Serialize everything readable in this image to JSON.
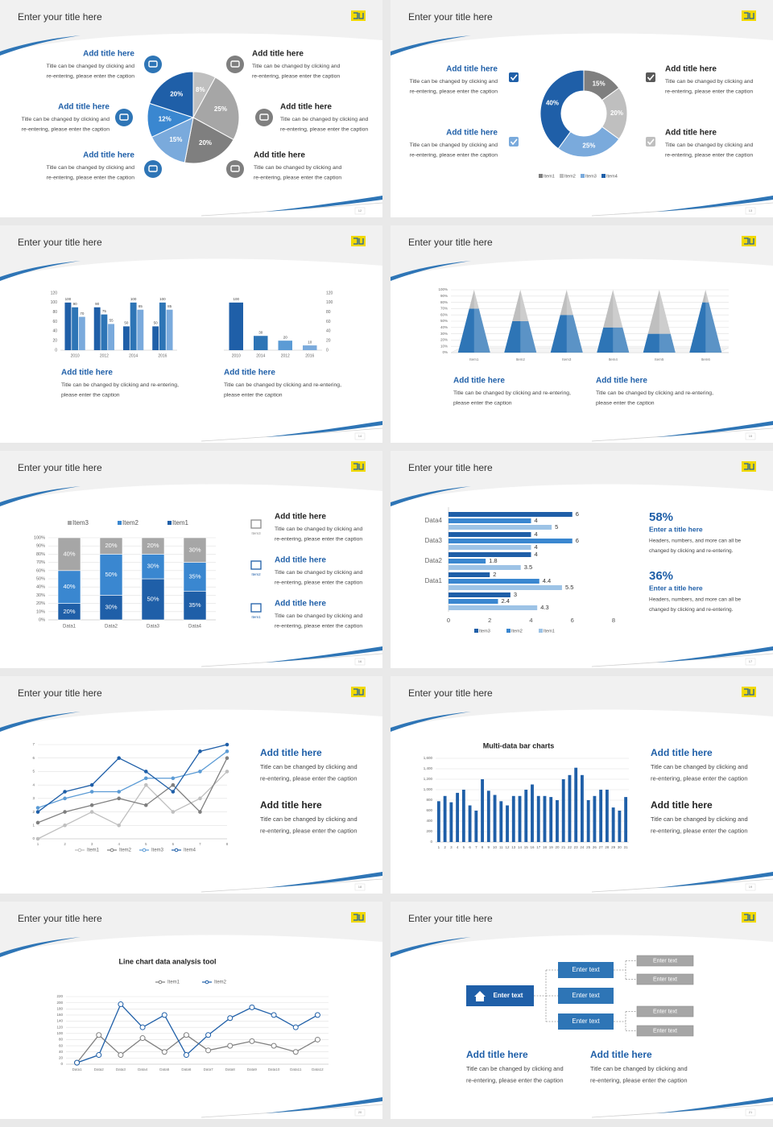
{
  "slides": [
    {
      "title": "Enter your title here",
      "page": 12,
      "chart": {
        "type": "pie",
        "values": [
          8,
          25,
          20,
          15,
          12,
          20
        ],
        "value_labels": [
          "8%",
          "25%",
          "20%",
          "15%",
          "12%",
          "20%"
        ],
        "colors": [
          "#bfbfbf",
          "#a6a6a6",
          "#7f7f7f",
          "#7aaadc",
          "#3a87d0",
          "#1f5fa8"
        ]
      },
      "blocks": [
        {
          "title": "Add title here",
          "lines": [
            "Title can be changed by clicking and",
            "re-entering, please enter the caption"
          ]
        },
        {
          "title": "Add title here",
          "lines": [
            "Title can be changed by clicking and",
            "re-entering, please enter the caption"
          ]
        },
        {
          "title": "Add title here",
          "lines": [
            "Title can be changed by clicking and",
            "re-entering, please enter the caption"
          ]
        },
        {
          "title": "Add title here",
          "lines": [
            "Title can be changed by clicking and",
            "re-entering, please enter the caption"
          ]
        },
        {
          "title": "Add title here",
          "lines": [
            "Title can be changed by clicking and",
            "re-entering, please enter the caption"
          ]
        },
        {
          "title": "Add title here",
          "lines": [
            "Title can be changed by clicking and",
            "re-entering, please enter the caption"
          ]
        }
      ]
    },
    {
      "title": "Enter your title here",
      "page": 13,
      "chart": {
        "type": "donut",
        "categories": [
          "Item1",
          "Item2",
          "Item3",
          "Item4"
        ],
        "values": [
          15,
          20,
          25,
          40
        ],
        "value_labels": [
          "15%",
          "20%",
          "25%",
          "40%"
        ],
        "colors": [
          "#7f7f7f",
          "#bfbfbf",
          "#7aaadc",
          "#1f5fa8"
        ]
      },
      "blocks": [
        {
          "title": "Add title here",
          "lines": [
            "Title can be changed by clicking and",
            "re-entering, please enter the caption"
          ]
        },
        {
          "title": "Add title here",
          "lines": [
            "Title can be changed by clicking and",
            "re-entering, please enter the caption"
          ]
        },
        {
          "title": "Add title here",
          "lines": [
            "Title can be changed by clicking and",
            "re-entering, please enter the caption"
          ]
        },
        {
          "title": "Add title here",
          "lines": [
            "Title can be changed by clicking and",
            "re-entering, please enter the caption"
          ]
        }
      ]
    },
    {
      "title": "Enter your title here",
      "page": 14,
      "charts": [
        {
          "type": "bar",
          "categories": [
            "2010",
            "2012",
            "2014",
            "2016"
          ],
          "data_labels": true,
          "grid": false,
          "series": [
            {
              "color": "#1f5fa8",
              "values": [
                100,
                90,
                50,
                50
              ]
            },
            {
              "color": "#2e75b6",
              "values": [
                90,
                75,
                100,
                100
              ]
            },
            {
              "color": "#7aaadc",
              "values": [
                70,
                55,
                85,
                85
              ]
            }
          ],
          "ylim": [
            0,
            120
          ],
          "yticks": [
            0,
            20,
            40,
            60,
            80,
            100,
            120
          ]
        },
        {
          "type": "bar",
          "categories": [
            "2010",
            "2014",
            "2012",
            "2016"
          ],
          "data_labels": true,
          "grid": false,
          "values": [
            100,
            30,
            20,
            10
          ],
          "colors": [
            "#1f5fa8",
            "#2e75b6",
            "#5b9bd5",
            "#7aaadc"
          ],
          "ylim": [
            0,
            120
          ],
          "yticks": [
            0,
            20,
            40,
            60,
            80,
            100,
            120
          ]
        }
      ],
      "blocks": [
        {
          "title": "Add title here",
          "lines": [
            "Title can be changed by clicking and re-entering,",
            "please enter the caption"
          ]
        },
        {
          "title": "Add title here",
          "lines": [
            "Title can be changed by clicking and re-entering,",
            "please enter the caption"
          ]
        }
      ]
    },
    {
      "title": "Enter your title here",
      "page": 15,
      "chart": {
        "type": "pyramid",
        "categories": [
          "Item1",
          "Item2",
          "Item3",
          "Item4",
          "Item5",
          "Item6"
        ],
        "grid": true,
        "series": [
          {
            "color": "#2e75b6",
            "values": [
              70,
              50,
              60,
              40,
              30,
              80
            ]
          },
          {
            "color": "#bfbfbf",
            "values": [
              30,
              50,
              40,
              60,
              70,
              20
            ]
          }
        ],
        "ylim": [
          0,
          100
        ],
        "yticks": [
          {
            "value": 0,
            "label": "0%"
          },
          {
            "value": 10,
            "label": "10%"
          },
          {
            "value": 20,
            "label": "20%"
          },
          {
            "value": 30,
            "label": "30%"
          },
          {
            "value": 40,
            "label": "40%"
          },
          {
            "value": 50,
            "label": "50%"
          },
          {
            "value": 60,
            "label": "60%"
          },
          {
            "value": 70,
            "label": "70%"
          },
          {
            "value": 80,
            "label": "80%"
          },
          {
            "value": 90,
            "label": "90%"
          },
          {
            "value": 100,
            "label": "100%"
          }
        ]
      },
      "blocks": [
        {
          "title": "Add title here",
          "lines": [
            "Title can be changed by clicking and re-entering,",
            "please enter the caption"
          ]
        },
        {
          "title": "Add title here",
          "lines": [
            "Title can be changed by clicking and re-entering,",
            "please enter the caption"
          ]
        }
      ]
    },
    {
      "title": "Enter your title here",
      "page": 16,
      "chart": {
        "type": "stacked_bar",
        "categories": [
          "Data1",
          "Data2",
          "Data3",
          "Data4"
        ],
        "grid": true,
        "series": [
          {
            "name": "Item1",
            "color": "#1f5fa8",
            "values": [
              20,
              30,
              50,
              35
            ],
            "value_labels": [
              "20%",
              "30%",
              "50%",
              "35%"
            ]
          },
          {
            "name": "Item2",
            "color": "#3a87d0",
            "values": [
              40,
              50,
              30,
              35
            ],
            "value_labels": [
              "40%",
              "50%",
              "30%",
              "35%"
            ]
          },
          {
            "name": "Item3",
            "color": "#a6a6a6",
            "values": [
              40,
              20,
              20,
              30
            ],
            "value_labels": [
              "40%",
              "20%",
              "20%",
              "30%"
            ]
          }
        ],
        "ylim": [
          0,
          100
        ],
        "yticks": [
          {
            "value": 0,
            "label": "0%"
          },
          {
            "value": 10,
            "label": "10%"
          },
          {
            "value": 20,
            "label": "20%"
          },
          {
            "value": 30,
            "label": "30%"
          },
          {
            "value": 40,
            "label": "40%"
          },
          {
            "value": 50,
            "label": "50%"
          },
          {
            "value": 60,
            "label": "60%"
          },
          {
            "value": 70,
            "label": "70%"
          },
          {
            "value": 80,
            "label": "80%"
          },
          {
            "value": 90,
            "label": "90%"
          },
          {
            "value": 100,
            "label": "100%"
          }
        ]
      },
      "icon_labels": [
        "Item3",
        "Item2",
        "Item1"
      ],
      "blocks": [
        {
          "title": "Add title here",
          "lines": [
            "Title can be changed by clicking and",
            "re-entering, please enter the caption"
          ]
        },
        {
          "title": "Add title here",
          "lines": [
            "Title can be changed by clicking and",
            "re-entering, please enter the caption"
          ]
        },
        {
          "title": "Add title here",
          "lines": [
            "Title can be changed by clicking and",
            "re-entering, please enter the caption"
          ]
        }
      ]
    },
    {
      "title": "Enter your title here",
      "page": 17,
      "chart": {
        "type": "hbar",
        "categories": [
          null,
          "Data1",
          "Data2",
          "Data3",
          "Data4"
        ],
        "series": [
          {
            "name": "Item3",
            "color": "#1f5fa8",
            "values": [
              3,
              2,
              4,
              4,
              6
            ]
          },
          {
            "name": "Item2",
            "color": "#3a87d0",
            "values": [
              2.4,
              4.4,
              1.8,
              6,
              4
            ]
          },
          {
            "name": "Item1",
            "color": "#9dc3e6",
            "values": [
              4.3,
              5.5,
              3.5,
              4,
              5
            ]
          }
        ],
        "xlim": [
          0,
          8
        ],
        "xticks": [
          0,
          2,
          4,
          6,
          8
        ]
      },
      "stats": [
        {
          "value": "58%",
          "title": "Enter a title here",
          "lines": [
            "Headers, numbers, and more can all be",
            "changed by clicking and re-entering."
          ]
        },
        {
          "value": "36%",
          "title": "Enter a title here",
          "lines": [
            "Headers, numbers, and more can all be",
            "changed by clicking and re-entering."
          ]
        }
      ]
    },
    {
      "title": "Enter your title here",
      "page": 18,
      "chart": {
        "type": "line",
        "marker": "filled",
        "grid": true,
        "x": [
          1,
          2,
          3,
          4,
          5,
          6,
          7,
          8
        ],
        "series": [
          {
            "name": "Item1",
            "color": "#bfbfbf",
            "values": [
              0,
              1,
              2,
              1,
              4,
              2,
              3,
              5
            ]
          },
          {
            "name": "Item2",
            "color": "#7f7f7f",
            "values": [
              1.2,
              2,
              2.5,
              3,
              2.5,
              4,
              2,
              6
            ]
          },
          {
            "name": "Item3",
            "color": "#5b9bd5",
            "values": [
              2.3,
              3,
              3.5,
              3.5,
              4.5,
              4.5,
              5,
              6.5
            ]
          },
          {
            "name": "Item4",
            "color": "#1f5fa8",
            "values": [
              2,
              3.5,
              4,
              6,
              5,
              3.5,
              6.5,
              7
            ]
          }
        ],
        "xlim": [
          1,
          8
        ],
        "xticks": [
          1,
          2,
          3,
          4,
          5,
          6,
          7,
          8
        ],
        "ylim": [
          0,
          7
        ],
        "yticks": [
          0,
          1,
          2,
          3,
          4,
          5,
          6,
          7
        ]
      },
      "blocks": [
        {
          "title": "Add title here",
          "lines": [
            "Title can be changed by clicking and",
            "re-entering, please enter the caption"
          ]
        },
        {
          "title": "Add title here",
          "lines": [
            "Title can be changed by clicking and",
            "re-entering, please enter the caption"
          ]
        }
      ]
    },
    {
      "title": "Enter your title here",
      "page": 19,
      "chart": {
        "type": "bar",
        "title": "Multi-data bar charts",
        "grid": true,
        "data_labels": false,
        "color": "#1f5fa8",
        "categories": [
          "1",
          "2",
          "3",
          "4",
          "5",
          "6",
          "7",
          "8",
          "9",
          "10",
          "11",
          "12",
          "13",
          "14",
          "15",
          "16",
          "17",
          "18",
          "19",
          "20",
          "21",
          "22",
          "23",
          "24",
          "25",
          "26",
          "27",
          "28",
          "29",
          "30",
          "31"
        ],
        "values": [
          780,
          880,
          760,
          940,
          1000,
          700,
          600,
          1200,
          980,
          900,
          780,
          700,
          880,
          880,
          1000,
          1100,
          880,
          880,
          860,
          800,
          1200,
          1280,
          1420,
          1280,
          800,
          880,
          1000,
          1000,
          660,
          600,
          860
        ],
        "ylim": [
          0,
          1600
        ],
        "yticks": [
          0,
          200,
          400,
          600,
          800,
          {
            "value": 1000,
            "label": "1,000"
          },
          {
            "value": 1200,
            "label": "1,200"
          },
          {
            "value": 1400,
            "label": "1,400"
          },
          {
            "value": 1600,
            "label": "1,600"
          }
        ]
      },
      "blocks": [
        {
          "title": "Add title here",
          "lines": [
            "Title can be changed by clicking and",
            "re-entering, please enter the caption"
          ]
        },
        {
          "title": "Add title here",
          "lines": [
            "Title can be changed by clicking and",
            "re-entering, please enter the caption"
          ]
        }
      ]
    },
    {
      "title": "Enter your title here",
      "page": 20,
      "chart": {
        "type": "line",
        "title": "Line chart data analysis tool",
        "marker": "open",
        "grid": true,
        "categories": [
          "Data1",
          "Data2",
          "Data3",
          "Data4",
          "Data5",
          "Data6",
          "Data7",
          "Data8",
          "Data9",
          "Data10",
          "Data11",
          "Data12"
        ],
        "series": [
          {
            "name": "Item1",
            "color": "#7f7f7f",
            "values": [
              5,
              95,
              30,
              85,
              40,
              95,
              45,
              60,
              75,
              60,
              40,
              80
            ]
          },
          {
            "name": "Item2",
            "color": "#1f5fa8",
            "values": [
              5,
              30,
              195,
              120,
              160,
              30,
              95,
              150,
              185,
              160,
              120,
              160
            ]
          }
        ],
        "ylim": [
          0,
          220
        ],
        "yticks": [
          0,
          20,
          40,
          60,
          80,
          100,
          120,
          140,
          160,
          180,
          200,
          220
        ]
      }
    },
    {
      "title": "Enter your title here",
      "page": 21,
      "diagram": {
        "root": "Enter text",
        "middle": [
          "Enter text",
          "Enter text",
          "Enter text"
        ],
        "leaves": [
          "Enter text",
          "Enter text",
          "Enter text",
          "Enter text"
        ]
      },
      "blocks": [
        {
          "title": "Add title here",
          "lines": [
            "Title can be changed by clicking and",
            "re-entering, please enter the caption"
          ]
        },
        {
          "title": "Add title here",
          "lines": [
            "Title can be changed by clicking and",
            "re-entering, please enter the caption"
          ]
        }
      ]
    }
  ]
}
